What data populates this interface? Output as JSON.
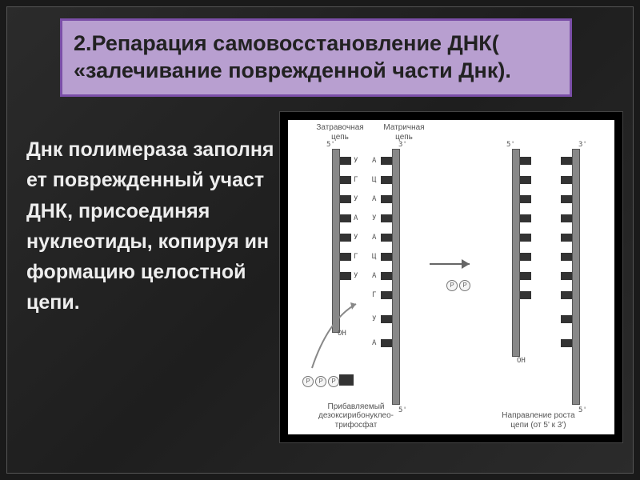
{
  "title": "2.Репарация самовосстановление ДНК( «залечивание поврежденной части Днк).",
  "body_lines": [
    "Днк полимераза заполня",
    "ет поврежденный участ",
    " ДНК, присоединяя",
    "нуклеотиды, копируя ин",
    "формацию целостной",
    "цепи."
  ],
  "figure": {
    "top_label_left": "Затравочная\nцепь",
    "top_label_right": "Матричная\nцепь",
    "bottom_label_left": "Прибавляемый\nдезоксирибонуклео-\nтрифосфат",
    "bottom_label_right": "Направление роста\nцепи (от 5' к 3')",
    "oh_label": "OH",
    "end5": "5'",
    "end3": "3'",
    "bases_left": [
      "У",
      "Г",
      "У",
      "А",
      "У",
      "Г",
      "У"
    ],
    "bases_right": [
      "А",
      "Ц",
      "А",
      "У",
      "А",
      "Ц",
      "А",
      "Г",
      "У",
      "А"
    ],
    "circle_labels": [
      "Р",
      "Р",
      "Р"
    ],
    "colors": {
      "title_bg": "#b89fd0",
      "title_border": "#7b4fa8",
      "title_text": "#222222",
      "body_text": "#eeeeee",
      "slide_bg": "#1e1e1e",
      "figure_bg": "#ffffff",
      "strand": "#888888"
    },
    "title_fontsize": 27,
    "body_fontsize": 25
  }
}
